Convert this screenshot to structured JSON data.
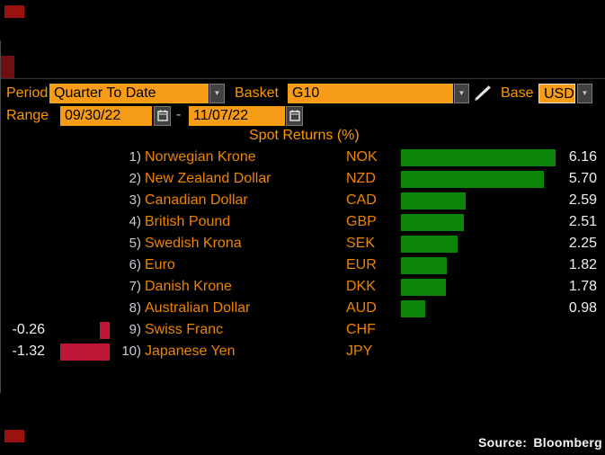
{
  "header": {
    "period_label": "Period",
    "period_value": "Quarter To Date",
    "basket_label": "Basket",
    "basket_value": "G10",
    "base_label": "Base",
    "base_value": "USD",
    "range_label": "Range",
    "range_start": "09/30/22",
    "range_separator": "-",
    "range_end": "11/07/22"
  },
  "icons": {
    "dropdown_arrow": "▼"
  },
  "chart_data": {
    "type": "bar",
    "orientation": "horizontal",
    "title": "Spot Returns (%)",
    "row_numbers": [
      "1)",
      "2)",
      "3)",
      "4)",
      "5)",
      "6)",
      "7)",
      "8)",
      "9)",
      "10)"
    ],
    "categories": [
      "Norwegian Krone",
      "New Zealand Dollar",
      "Canadian Dollar",
      "British Pound",
      "Swedish Krona",
      "Euro",
      "Danish Krone",
      "Australian Dollar",
      "Swiss Franc",
      "Japanese Yen"
    ],
    "codes": [
      "NOK",
      "NZD",
      "CAD",
      "GBP",
      "SEK",
      "EUR",
      "DKK",
      "AUD",
      "CHF",
      "JPY"
    ],
    "values": [
      6.16,
      5.7,
      2.59,
      2.51,
      2.25,
      1.82,
      1.78,
      0.98,
      -0.26,
      -1.32
    ],
    "value_labels": [
      "6.16",
      "5.70",
      "2.59",
      "2.51",
      "2.25",
      "1.82",
      "1.78",
      "0.98",
      "-0.26",
      "-1.32"
    ],
    "positive_color": "#0b860b",
    "negative_color": "#bf1638",
    "grid": false,
    "legend": false,
    "source": "Source: Bloomberg"
  }
}
